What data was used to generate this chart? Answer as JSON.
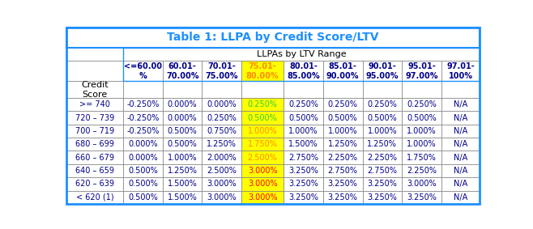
{
  "title": "Table 1: LLPA by Credit Score/LTV",
  "subtitle": "LLPAs by LTV Range",
  "col_headers": [
    "<=60.00\n%",
    "60.01-\n70.00%",
    "70.01-\n75.00%",
    "75.01-\n80.00%",
    "80.01-\n85.00%",
    "85.01-\n90.00%",
    "90.01-\n95.00%",
    "95.01-\n97.00%",
    "97.01-\n100%"
  ],
  "row_headers": [
    ">= 740",
    "720 – 739",
    "700 – 719",
    "680 – 699",
    "660 – 679",
    "640 – 659",
    "620 – 639",
    "< 620 (1)"
  ],
  "data": [
    [
      "-0.250%",
      "0.000%",
      "0.000%",
      "0.250%",
      "0.250%",
      "0.250%",
      "0.250%",
      "0.250%",
      "N/A"
    ],
    [
      "-0.250%",
      "0.000%",
      "0.250%",
      "0.500%",
      "0.500%",
      "0.500%",
      "0.500%",
      "0.500%",
      "N/A"
    ],
    [
      "-0.250%",
      "0.500%",
      "0.750%",
      "1.000%",
      "1.000%",
      "1.000%",
      "1.000%",
      "1.000%",
      "N/A"
    ],
    [
      "0.000%",
      "0.500%",
      "1.250%",
      "1.750%",
      "1.500%",
      "1.250%",
      "1.250%",
      "1.000%",
      "N/A"
    ],
    [
      "0.000%",
      "1.000%",
      "2.000%",
      "2.500%",
      "2.750%",
      "2.250%",
      "2.250%",
      "1.750%",
      "N/A"
    ],
    [
      "0.500%",
      "1.250%",
      "2.500%",
      "3.000%",
      "3.250%",
      "2.750%",
      "2.750%",
      "2.250%",
      "N/A"
    ],
    [
      "0.500%",
      "1.500%",
      "3.000%",
      "3.000%",
      "3.250%",
      "3.250%",
      "3.250%",
      "3.000%",
      "N/A"
    ],
    [
      "0.500%",
      "1.500%",
      "3.000%",
      "3.000%",
      "3.250%",
      "3.250%",
      "3.250%",
      "3.250%",
      "N/A"
    ]
  ],
  "col3_text_colors": [
    "#32CD32",
    "#32CD32",
    "#FF8C00",
    "#FF8C00",
    "#FF8C00",
    "#FF0000",
    "#FF0000",
    "#FF0000"
  ],
  "col3_highlight_bg": "#FFFF00",
  "normal_text_color": "#00008B",
  "header_text_color": "#00008B",
  "title_color": "#1E90FF",
  "outer_border_color": "#1E90FF",
  "inner_border_color": "#808080",
  "title_fontsize": 10,
  "cell_fontsize": 7,
  "header_fontsize": 7,
  "credit_score_fontsize": 8
}
